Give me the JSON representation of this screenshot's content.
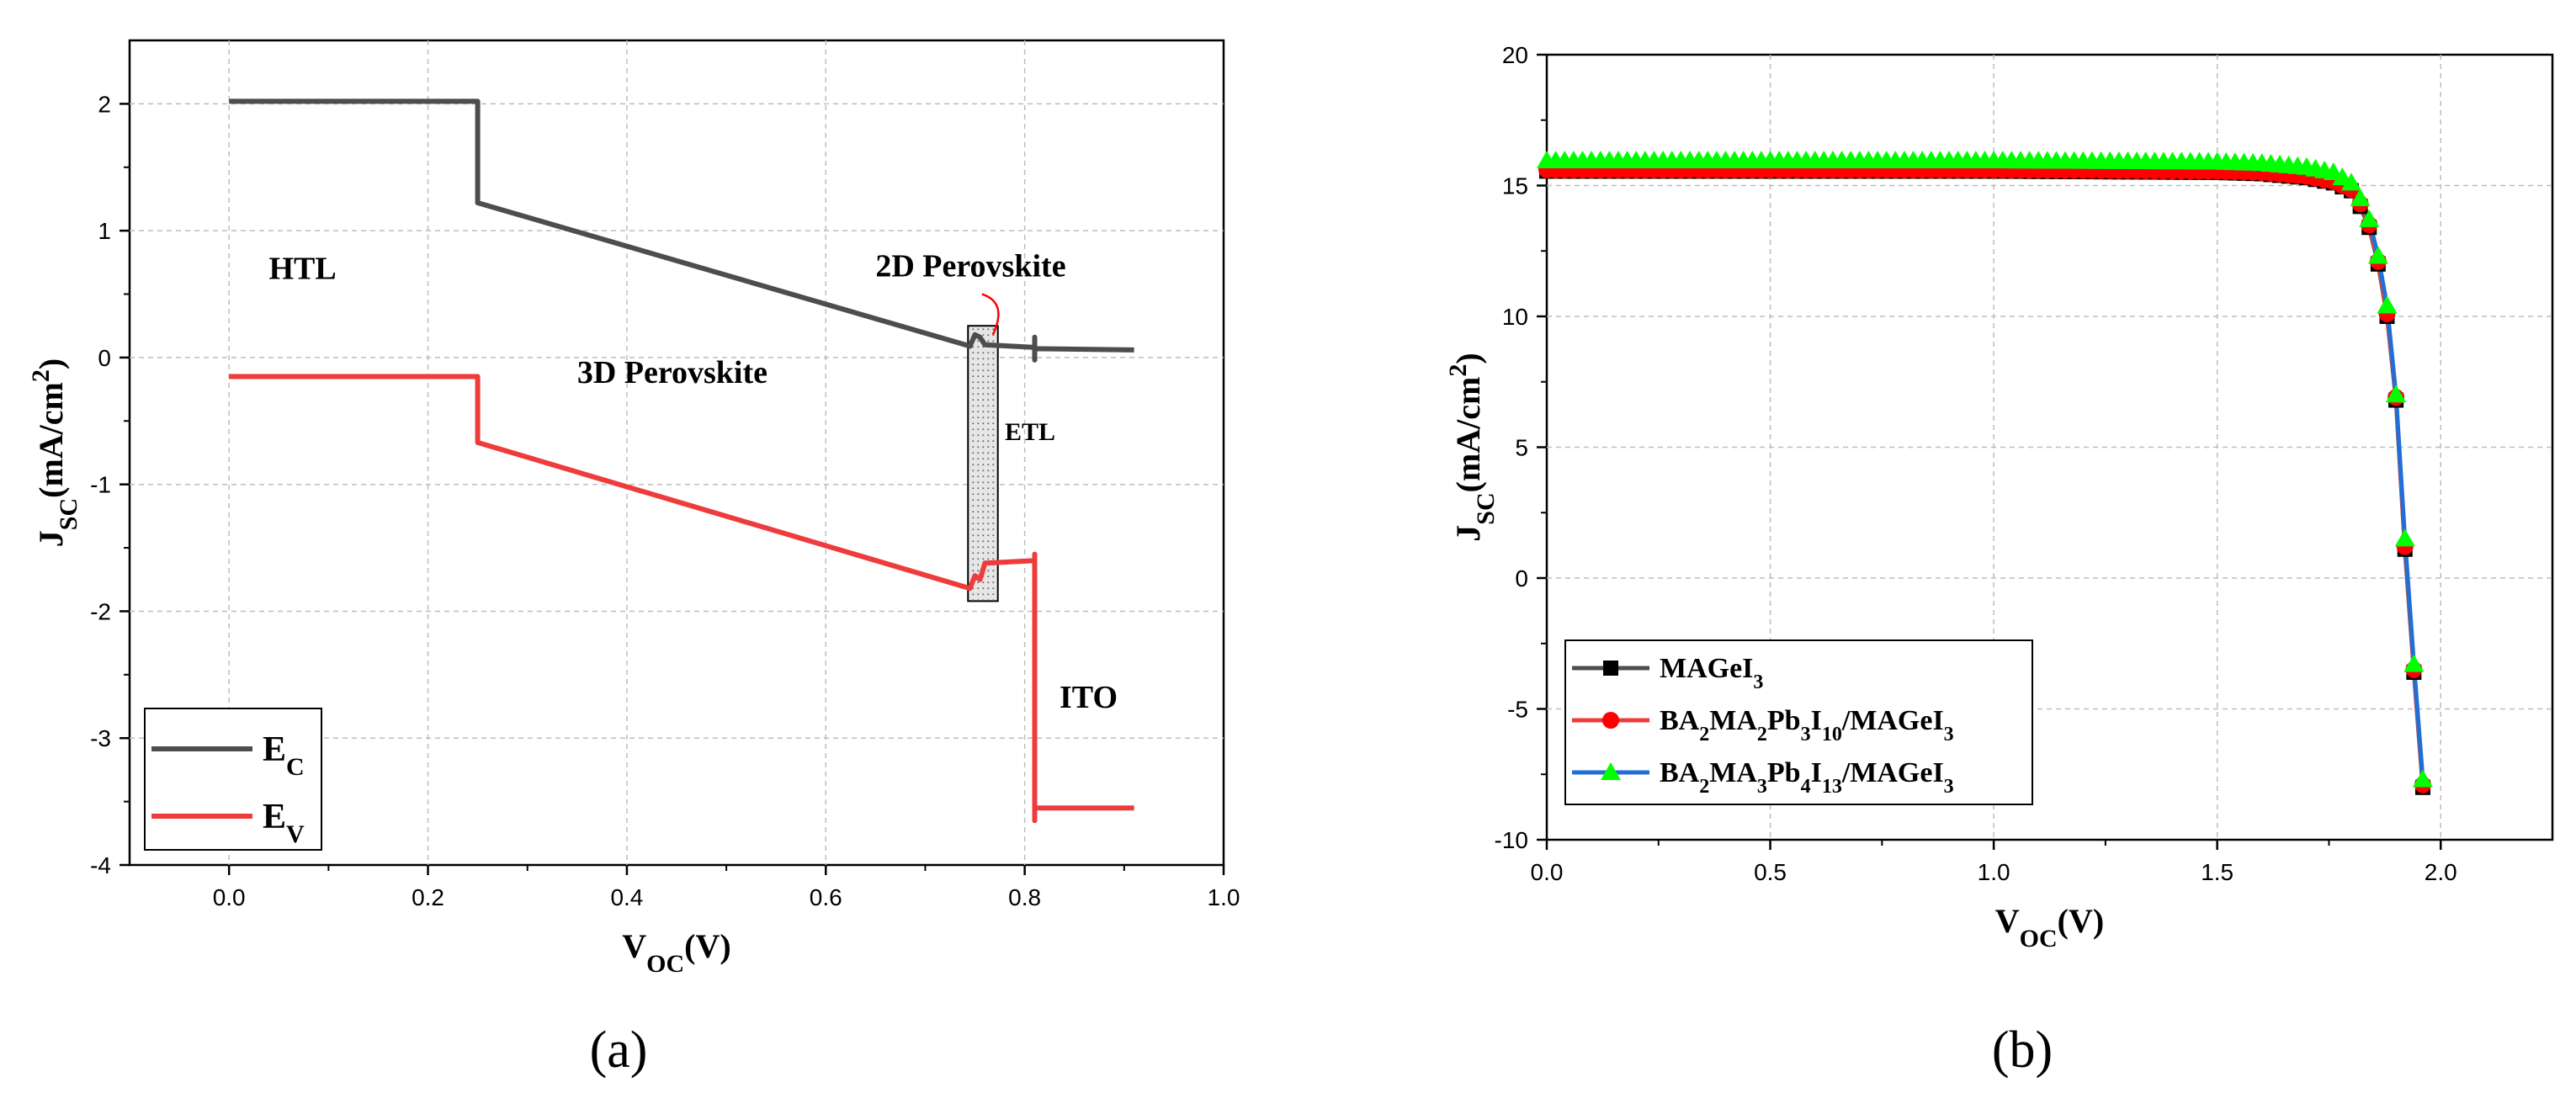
{
  "chart_data": [
    {
      "id": "a",
      "type": "line",
      "panel_label": "(a)",
      "xlabel": "V",
      "xlabel_sub": "OC",
      "xlabel_tail": "(V)",
      "ylabel": "J",
      "ylabel_sub": "SC",
      "ylabel_tail": "(mA/cm",
      "ylabel_sup": "2",
      "ylabel_end": ")",
      "xlim": [
        -0.1,
        1.0
      ],
      "ylim": [
        -4,
        2.5
      ],
      "xticks": [
        0.0,
        0.2,
        0.4,
        0.6,
        0.8,
        1.0
      ],
      "xtick_labels": [
        "0.0",
        "0.2",
        "0.4",
        "0.6",
        "0.8",
        "1.0"
      ],
      "yticks": [
        -4,
        -3,
        -2,
        -1,
        0,
        1,
        2
      ],
      "ytick_labels": [
        "-4",
        "-3",
        "-2",
        "-1",
        "0",
        "1",
        "2"
      ],
      "grid": true,
      "series": [
        {
          "name": "E",
          "sub": "C",
          "color": "#4d4d4d",
          "points": [
            [
              0.0,
              2.02
            ],
            [
              0.25,
              2.02
            ],
            [
              0.25,
              1.22
            ],
            [
              0.745,
              0.09
            ],
            [
              0.75,
              0.18
            ],
            [
              0.755,
              0.16
            ],
            [
              0.76,
              0.1
            ],
            [
              0.81,
              0.08
            ],
            [
              0.81,
              -0.02
            ],
            [
              0.81,
              0.16
            ],
            [
              0.81,
              0.07
            ],
            [
              0.91,
              0.06
            ]
          ]
        },
        {
          "name": "E",
          "sub": "V",
          "color": "#ee3b3b",
          "points": [
            [
              0.0,
              -0.15
            ],
            [
              0.25,
              -0.15
            ],
            [
              0.25,
              -0.67
            ],
            [
              0.745,
              -1.82
            ],
            [
              0.75,
              -1.72
            ],
            [
              0.755,
              -1.75
            ],
            [
              0.76,
              -1.62
            ],
            [
              0.81,
              -1.6
            ],
            [
              0.81,
              -1.55
            ],
            [
              0.81,
              -3.65
            ],
            [
              0.81,
              -3.55
            ],
            [
              0.91,
              -3.55
            ]
          ]
        }
      ],
      "etl_box": {
        "x0": 0.743,
        "x1": 0.773,
        "y0": 0.25,
        "y1": -1.92
      },
      "annotations": [
        {
          "text": "HTL",
          "x": 0.04,
          "y": 0.62
        },
        {
          "text": "3D Perovskite",
          "x": 0.35,
          "y": -0.2
        },
        {
          "text": "2D Perovskite",
          "x": 0.65,
          "y": 0.64
        },
        {
          "text": "ETL",
          "x": 0.78,
          "y": -0.65
        },
        {
          "text": "ITO",
          "x": 0.835,
          "y": -2.76
        }
      ],
      "legend_position": "bottom-left"
    },
    {
      "id": "b",
      "type": "line",
      "panel_label": "(b)",
      "xlabel": "V",
      "xlabel_sub": "OC",
      "xlabel_tail": "(V)",
      "ylabel": "J",
      "ylabel_sub": "SC",
      "ylabel_tail": "(mA/cm",
      "ylabel_sup": "2",
      "ylabel_end": ")",
      "xlim": [
        0,
        2.25
      ],
      "ylim": [
        -10,
        20
      ],
      "xticks": [
        0.0,
        0.5,
        1.0,
        1.5,
        2.0
      ],
      "xtick_labels": [
        "0.0",
        "0.5",
        "1.0",
        "1.5",
        "2.0"
      ],
      "yticks": [
        -10,
        -5,
        0,
        5,
        10,
        15,
        20
      ],
      "ytick_labels": [
        "-10",
        "-5",
        "0",
        "5",
        "10",
        "15",
        "20"
      ],
      "grid": true,
      "series": [
        {
          "legend_parts": [
            [
              "MAGeI",
              ""
            ],
            [
              "3",
              "sub"
            ]
          ],
          "color": "#000000",
          "line_color": "#4d4d4d",
          "marker": "square",
          "x": [
            0.0,
            0.5,
            1.0,
            1.5,
            1.6,
            1.7,
            1.76,
            1.8,
            1.82,
            1.84,
            1.86,
            1.88,
            1.9,
            1.92,
            1.94,
            1.96
          ],
          "values": [
            15.55,
            15.55,
            15.55,
            15.5,
            15.45,
            15.3,
            15.1,
            14.8,
            14.2,
            13.4,
            12.0,
            10.0,
            6.8,
            1.1,
            -3.6,
            -8.0
          ]
        },
        {
          "legend_parts": [
            [
              "BA",
              ""
            ],
            [
              "2",
              "sub"
            ],
            [
              "MA",
              ""
            ],
            [
              "2",
              "sub"
            ],
            [
              "Pb",
              ""
            ],
            [
              "3",
              "sub"
            ],
            [
              "I",
              ""
            ],
            [
              "10",
              "sub"
            ],
            [
              "/MAGeI",
              ""
            ],
            [
              "3",
              "sub"
            ]
          ],
          "color": "#ff0000",
          "line_color": "#ee3b3b",
          "marker": "circle",
          "x": [
            0.0,
            0.5,
            1.0,
            1.5,
            1.6,
            1.7,
            1.76,
            1.8,
            1.82,
            1.84,
            1.86,
            1.88,
            1.9,
            1.92,
            1.94,
            1.96
          ],
          "values": [
            15.6,
            15.6,
            15.6,
            15.55,
            15.5,
            15.35,
            15.15,
            14.85,
            14.3,
            13.5,
            12.1,
            10.1,
            6.9,
            1.2,
            -3.5,
            -7.9
          ]
        },
        {
          "legend_parts": [
            [
              "BA",
              ""
            ],
            [
              "2",
              "sub"
            ],
            [
              "MA",
              ""
            ],
            [
              "3",
              "sub"
            ],
            [
              "Pb",
              ""
            ],
            [
              "4",
              "sub"
            ],
            [
              "I",
              ""
            ],
            [
              "13",
              "sub"
            ],
            [
              "/MAGeI",
              ""
            ],
            [
              "3",
              "sub"
            ]
          ],
          "color": "#00ff00",
          "line_color": "#1f6fd6",
          "marker": "triangle",
          "x": [
            0.0,
            0.5,
            1.0,
            1.5,
            1.6,
            1.7,
            1.76,
            1.8,
            1.82,
            1.84,
            1.86,
            1.88,
            1.9,
            1.92,
            1.94,
            1.96
          ],
          "values": [
            15.95,
            15.95,
            15.95,
            15.9,
            15.85,
            15.7,
            15.5,
            15.1,
            14.5,
            13.7,
            12.3,
            10.4,
            7.0,
            1.5,
            -3.3,
            -7.7
          ]
        }
      ],
      "legend_position": "bottom-left"
    }
  ]
}
